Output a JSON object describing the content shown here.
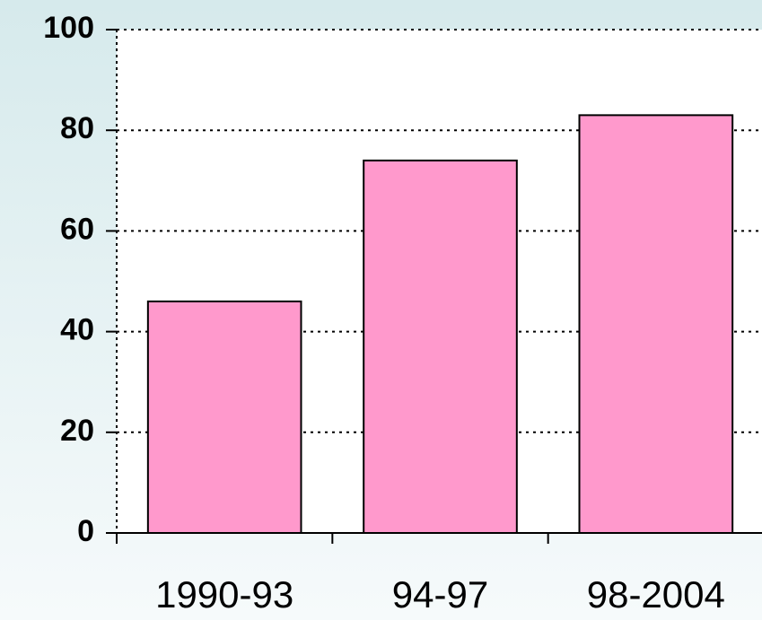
{
  "chart_data": {
    "type": "bar",
    "categories": [
      "1990-93",
      "94-97",
      "98-2004"
    ],
    "values": [
      46,
      74,
      83
    ],
    "color": "#ff99cc",
    "ylim": [
      0,
      100
    ],
    "yticks": [
      0,
      20,
      40,
      60,
      80,
      100
    ],
    "grid": true
  }
}
